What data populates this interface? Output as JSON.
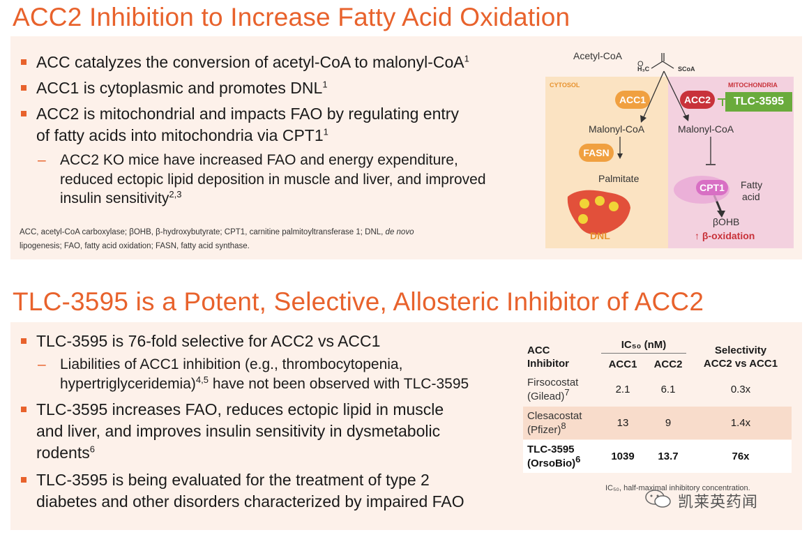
{
  "section1": {
    "title": "ACC2 Inhibition to Increase Fatty Acid Oxidation",
    "bullets": [
      {
        "text": "ACC catalyzes the conversion of acetyl-CoA to malonyl-CoA",
        "sup": "1"
      },
      {
        "text": "ACC1 is cytoplasmic and promotes DNL",
        "sup": "1"
      },
      {
        "text1": "ACC2 is mitochondrial and impacts FAO by regulating entry",
        "text2": "of fatty acids into mitochondria via CPT1",
        "sup": "1"
      }
    ],
    "sub": {
      "dash": "–",
      "line1": "ACC2 KO mice have increased FAO and energy expenditure,",
      "line2": "reduced ectopic lipid deposition in muscle and liver, and improved",
      "line3": "insulin sensitivity",
      "sup": "2,3"
    },
    "abbr_line1_a": "ACC, acetyl-CoA carboxylase; βOHB, β-hydroxybutyrate; CPT1, carnitine palmitoyltransferase 1; DNL, ",
    "abbr_line1_i": "de novo",
    "abbr_line2": "lipogenesis; FAO, fatty acid oxidation; FASN, fatty acid synthase."
  },
  "diagram": {
    "acetyl": "Acetyl-CoA",
    "h3c": "H₃C",
    "o": "O",
    "scoa": "SCoA",
    "cytosol": "CYTOSOL",
    "mito": "MITOCHONDRIA",
    "acc1": "ACC1",
    "acc2": "ACC2",
    "tlc": "TLC-3595",
    "mal1": "Malonyl-CoA",
    "mal2": "Malonyl-CoA",
    "fasn": "FASN",
    "palm": "Palmitate",
    "cpt1": "CPT1",
    "fa1": "Fatty",
    "fa2": "acid",
    "bohb": "βOHB",
    "betaox": "↑ β-oxidation",
    "dnl": "DNL",
    "colors": {
      "orange_pill": "#f0a040",
      "red_pill": "#c8323a",
      "green": "#6aab3c",
      "cytosol_bg": "#fbe3c2",
      "mito_bg": "#f3d1df",
      "cpt1": "#d86fc4"
    }
  },
  "section2": {
    "title": "TLC-3595 is a Potent, Selective, Allosteric Inhibitor of ACC2",
    "b1": "TLC-3595 is 76-fold selective for ACC2 vs ACC1",
    "sub_dash": "–",
    "sub1": "Liabilities of ACC1 inhibition (e.g., thrombocytopenia,",
    "sub2a": "hypertriglyceridemia)",
    "sub2sup": "4,5",
    "sub2b": " have not been observed with TLC-3595",
    "b2a": "TLC-3595 increases FAO, reduces ectopic lipid in muscle",
    "b2b": "and liver, and improves insulin sensitivity in dysmetabolic",
    "b2c": "rodents",
    "b2sup": "6",
    "b3a": "TLC-3595 is being evaluated for the treatment of type 2",
    "b3b": "diabetes and other disorders characterized by impaired FAO"
  },
  "table": {
    "h_inhib1": "ACC",
    "h_inhib2": "Inhibitor",
    "h_ic50": "IC₅₀ (nM)",
    "h_acc1": "ACC1",
    "h_acc2": "ACC2",
    "h_sel1": "Selectivity",
    "h_sel2": "ACC2 vs ACC1",
    "rows": [
      {
        "name1": "Firsocostat",
        "name2": "(Gilead)",
        "sup": "7",
        "acc1": "2.1",
        "acc2": "6.1",
        "sel": "0.3x"
      },
      {
        "name1": "Clesacostat",
        "name2": "(Pfizer)",
        "sup": "8",
        "acc1": "13",
        "acc2": "9",
        "sel": "1.4x"
      },
      {
        "name1": "TLC-3595",
        "name2": "(OrsoBio)",
        "sup": "6",
        "acc1": "1039",
        "acc2": "13.7",
        "sel": "76x"
      }
    ],
    "footnote": "IC₅₀, half-maximal inhibitory concentration."
  },
  "watermark": "凯莱英药闻"
}
